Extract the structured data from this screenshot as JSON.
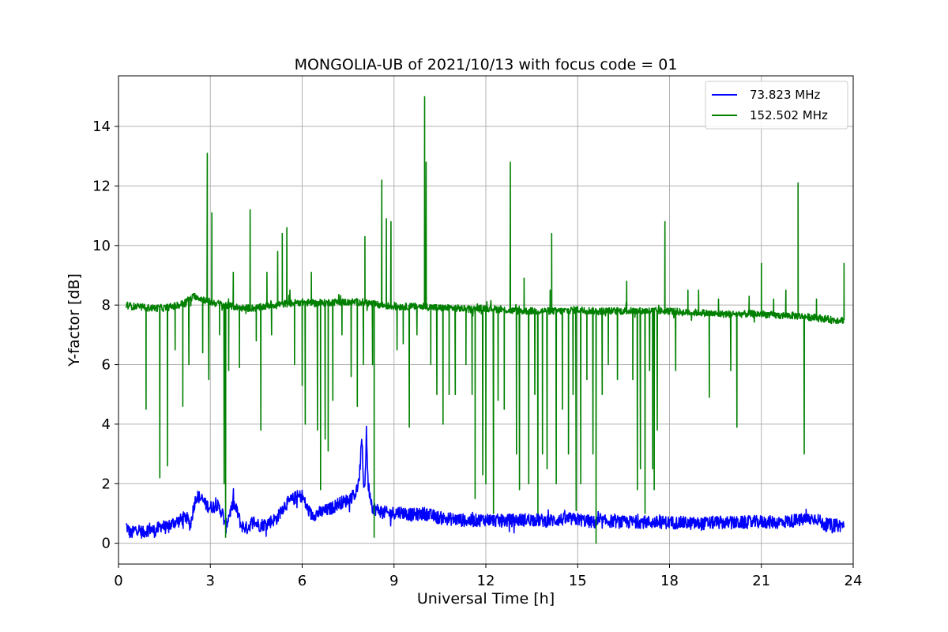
{
  "chart_data": {
    "type": "line",
    "title": "MONGOLIA-UB of 2021/10/13 with focus code = 01",
    "xlabel": "Universal Time [h]",
    "ylabel": "Y-factor [dB]",
    "xlim": [
      0,
      24
    ],
    "ylim": [
      -0.7,
      15.7
    ],
    "xticks": [
      0,
      3,
      6,
      9,
      12,
      15,
      18,
      21,
      24
    ],
    "yticks": [
      0,
      2,
      4,
      6,
      8,
      10,
      12,
      14
    ],
    "grid": true,
    "legend_position": "top-right",
    "series": [
      {
        "name": "  73.823 MHz",
        "color": "#0000ff",
        "points": [
          [
            0.25,
            0.6
          ],
          [
            0.4,
            0.3
          ],
          [
            0.6,
            0.5
          ],
          [
            0.8,
            0.35
          ],
          [
            1.0,
            0.5
          ],
          [
            1.2,
            0.4
          ],
          [
            1.4,
            0.6
          ],
          [
            1.6,
            0.5
          ],
          [
            1.8,
            0.7
          ],
          [
            2.0,
            0.75
          ],
          [
            2.2,
            0.9
          ],
          [
            2.35,
            0.6
          ],
          [
            2.45,
            1.2
          ],
          [
            2.55,
            1.6
          ],
          [
            2.7,
            1.5
          ],
          [
            2.85,
            1.3
          ],
          [
            3.0,
            1.2
          ],
          [
            3.2,
            1.3
          ],
          [
            3.4,
            1.0
          ],
          [
            3.5,
            0.5
          ],
          [
            3.6,
            0.9
          ],
          [
            3.75,
            1.35
          ],
          [
            3.9,
            1.0
          ],
          [
            4.0,
            0.6
          ],
          [
            4.2,
            0.5
          ],
          [
            4.4,
            0.75
          ],
          [
            4.6,
            0.6
          ],
          [
            4.8,
            0.65
          ],
          [
            5.0,
            0.75
          ],
          [
            5.2,
            0.85
          ],
          [
            5.3,
            1.1
          ],
          [
            5.45,
            1.3
          ],
          [
            5.6,
            1.4
          ],
          [
            5.8,
            1.55
          ],
          [
            6.0,
            1.6
          ],
          [
            6.15,
            1.2
          ],
          [
            6.3,
            0.95
          ],
          [
            6.5,
            1.0
          ],
          [
            6.8,
            1.1
          ],
          [
            7.0,
            1.2
          ],
          [
            7.2,
            1.35
          ],
          [
            7.4,
            1.4
          ],
          [
            7.6,
            1.55
          ],
          [
            7.75,
            1.7
          ],
          [
            7.85,
            2.0
          ],
          [
            7.95,
            3.5
          ],
          [
            8.0,
            2.1
          ],
          [
            8.05,
            1.9
          ],
          [
            8.1,
            3.8
          ],
          [
            8.15,
            2.0
          ],
          [
            8.3,
            1.2
          ],
          [
            8.5,
            1.1
          ],
          [
            8.8,
            1.0
          ],
          [
            9.2,
            1.05
          ],
          [
            9.6,
            0.95
          ],
          [
            10.0,
            1.0
          ],
          [
            10.5,
            0.85
          ],
          [
            11.0,
            0.8
          ],
          [
            11.5,
            0.75
          ],
          [
            12.0,
            0.8
          ],
          [
            12.5,
            0.75
          ],
          [
            13.0,
            0.78
          ],
          [
            13.5,
            0.8
          ],
          [
            14.0,
            0.75
          ],
          [
            14.5,
            0.8
          ],
          [
            15.0,
            0.8
          ],
          [
            15.3,
            0.75
          ],
          [
            15.5,
            0.7
          ],
          [
            15.7,
            0.7
          ],
          [
            16.0,
            0.75
          ],
          [
            16.5,
            0.7
          ],
          [
            17.0,
            0.72
          ],
          [
            17.5,
            0.7
          ],
          [
            18.0,
            0.7
          ],
          [
            18.5,
            0.68
          ],
          [
            19.0,
            0.65
          ],
          [
            19.5,
            0.7
          ],
          [
            20.0,
            0.68
          ],
          [
            20.5,
            0.7
          ],
          [
            21.0,
            0.72
          ],
          [
            21.5,
            0.7
          ],
          [
            22.0,
            0.75
          ],
          [
            22.5,
            0.8
          ],
          [
            22.8,
            0.85
          ],
          [
            23.0,
            0.65
          ],
          [
            23.3,
            0.6
          ],
          [
            23.7,
            0.6
          ]
        ]
      },
      {
        "name": "152.502 MHz",
        "color": "#008000",
        "points": [
          [
            0.25,
            8.0
          ],
          [
            0.5,
            7.95
          ],
          [
            1.0,
            7.9
          ],
          [
            1.5,
            7.9
          ],
          [
            2.0,
            8.0
          ],
          [
            2.5,
            8.3
          ],
          [
            3.0,
            8.1
          ],
          [
            3.5,
            8.0
          ],
          [
            4.0,
            7.9
          ],
          [
            4.5,
            7.9
          ],
          [
            5.0,
            8.0
          ],
          [
            5.5,
            8.05
          ],
          [
            6.0,
            8.1
          ],
          [
            6.5,
            8.05
          ],
          [
            7.0,
            8.1
          ],
          [
            7.5,
            8.1
          ],
          [
            8.0,
            8.1
          ],
          [
            8.5,
            8.0
          ],
          [
            9.0,
            7.95
          ],
          [
            9.5,
            7.95
          ],
          [
            10.0,
            7.95
          ],
          [
            10.5,
            7.9
          ],
          [
            11.0,
            7.9
          ],
          [
            11.5,
            7.85
          ],
          [
            12.0,
            7.9
          ],
          [
            12.5,
            7.85
          ],
          [
            13.0,
            7.8
          ],
          [
            13.5,
            7.8
          ],
          [
            14.0,
            7.8
          ],
          [
            14.5,
            7.8
          ],
          [
            15.0,
            7.85
          ],
          [
            15.5,
            7.8
          ],
          [
            16.0,
            7.8
          ],
          [
            16.5,
            7.8
          ],
          [
            17.0,
            7.8
          ],
          [
            17.5,
            7.8
          ],
          [
            18.0,
            7.8
          ],
          [
            18.5,
            7.75
          ],
          [
            19.0,
            7.75
          ],
          [
            19.5,
            7.7
          ],
          [
            20.0,
            7.7
          ],
          [
            20.5,
            7.7
          ],
          [
            21.0,
            7.7
          ],
          [
            21.5,
            7.65
          ],
          [
            22.0,
            7.65
          ],
          [
            22.5,
            7.6
          ],
          [
            23.0,
            7.55
          ],
          [
            23.3,
            7.5
          ],
          [
            23.7,
            7.5
          ]
        ],
        "spikes": [
          [
            0.9,
            4.5
          ],
          [
            1.35,
            2.2
          ],
          [
            1.6,
            2.6
          ],
          [
            1.85,
            6.5
          ],
          [
            2.1,
            4.6
          ],
          [
            2.3,
            6.0
          ],
          [
            2.75,
            6.4
          ],
          [
            2.9,
            13.1
          ],
          [
            2.95,
            5.5
          ],
          [
            3.05,
            11.1
          ],
          [
            3.3,
            7.0
          ],
          [
            3.45,
            2.0
          ],
          [
            3.5,
            0.2
          ],
          [
            3.6,
            5.8
          ],
          [
            3.75,
            9.1
          ],
          [
            3.95,
            5.9
          ],
          [
            4.3,
            11.2
          ],
          [
            4.5,
            6.8
          ],
          [
            4.65,
            3.8
          ],
          [
            4.85,
            9.1
          ],
          [
            5.0,
            7.0
          ],
          [
            5.2,
            9.8
          ],
          [
            5.35,
            10.4
          ],
          [
            5.5,
            10.6
          ],
          [
            5.6,
            8.5
          ],
          [
            5.75,
            6.0
          ],
          [
            6.0,
            5.3
          ],
          [
            6.1,
            4.0
          ],
          [
            6.3,
            9.1
          ],
          [
            6.5,
            3.8
          ],
          [
            6.6,
            1.8
          ],
          [
            6.75,
            3.5
          ],
          [
            6.85,
            3.1
          ],
          [
            7.0,
            4.8
          ],
          [
            7.3,
            7.0
          ],
          [
            7.6,
            5.6
          ],
          [
            7.8,
            4.6
          ],
          [
            8.0,
            6.0
          ],
          [
            8.05,
            10.3
          ],
          [
            8.3,
            6.0
          ],
          [
            8.35,
            0.2
          ],
          [
            8.6,
            12.2
          ],
          [
            8.75,
            10.9
          ],
          [
            8.9,
            10.8
          ],
          [
            9.1,
            6.5
          ],
          [
            9.3,
            6.7
          ],
          [
            9.5,
            3.9
          ],
          [
            9.75,
            7.0
          ],
          [
            10.0,
            15.0
          ],
          [
            10.05,
            12.8
          ],
          [
            10.2,
            6.0
          ],
          [
            10.4,
            5.0
          ],
          [
            10.6,
            4.0
          ],
          [
            10.8,
            5.0
          ],
          [
            11.0,
            5.0
          ],
          [
            11.35,
            6.0
          ],
          [
            11.55,
            5.0
          ],
          [
            11.65,
            1.5
          ],
          [
            11.9,
            2.3
          ],
          [
            12.0,
            2.0
          ],
          [
            12.25,
            1.0
          ],
          [
            12.4,
            4.8
          ],
          [
            12.6,
            4.5
          ],
          [
            12.8,
            12.8
          ],
          [
            13.0,
            3.0
          ],
          [
            13.1,
            1.8
          ],
          [
            13.25,
            8.9
          ],
          [
            13.4,
            2.0
          ],
          [
            13.6,
            5.0
          ],
          [
            13.7,
            1.0
          ],
          [
            13.85,
            3.0
          ],
          [
            14.0,
            2.5
          ],
          [
            14.1,
            8.5
          ],
          [
            14.15,
            10.4
          ],
          [
            14.3,
            2.0
          ],
          [
            14.5,
            4.5
          ],
          [
            14.7,
            3.0
          ],
          [
            14.85,
            5.0
          ],
          [
            14.95,
            1.1
          ],
          [
            15.1,
            2.0
          ],
          [
            15.3,
            5.5
          ],
          [
            15.5,
            3.0
          ],
          [
            15.6,
            0.0
          ],
          [
            15.8,
            5.0
          ],
          [
            16.0,
            6.0
          ],
          [
            16.3,
            5.5
          ],
          [
            16.6,
            8.8
          ],
          [
            16.8,
            5.5
          ],
          [
            16.95,
            1.8
          ],
          [
            17.05,
            2.5
          ],
          [
            17.2,
            1.0
          ],
          [
            17.35,
            5.8
          ],
          [
            17.45,
            2.5
          ],
          [
            17.5,
            1.8
          ],
          [
            17.6,
            3.8
          ],
          [
            17.85,
            10.8
          ],
          [
            18.2,
            5.8
          ],
          [
            18.6,
            8.5
          ],
          [
            18.95,
            8.5
          ],
          [
            19.3,
            4.9
          ],
          [
            19.6,
            8.2
          ],
          [
            20.0,
            5.8
          ],
          [
            20.2,
            3.9
          ],
          [
            20.6,
            8.3
          ],
          [
            21.0,
            9.4
          ],
          [
            21.4,
            8.2
          ],
          [
            21.8,
            8.5
          ],
          [
            22.2,
            12.1
          ],
          [
            22.4,
            3.0
          ],
          [
            22.8,
            8.2
          ],
          [
            23.7,
            9.4
          ]
        ]
      }
    ]
  }
}
